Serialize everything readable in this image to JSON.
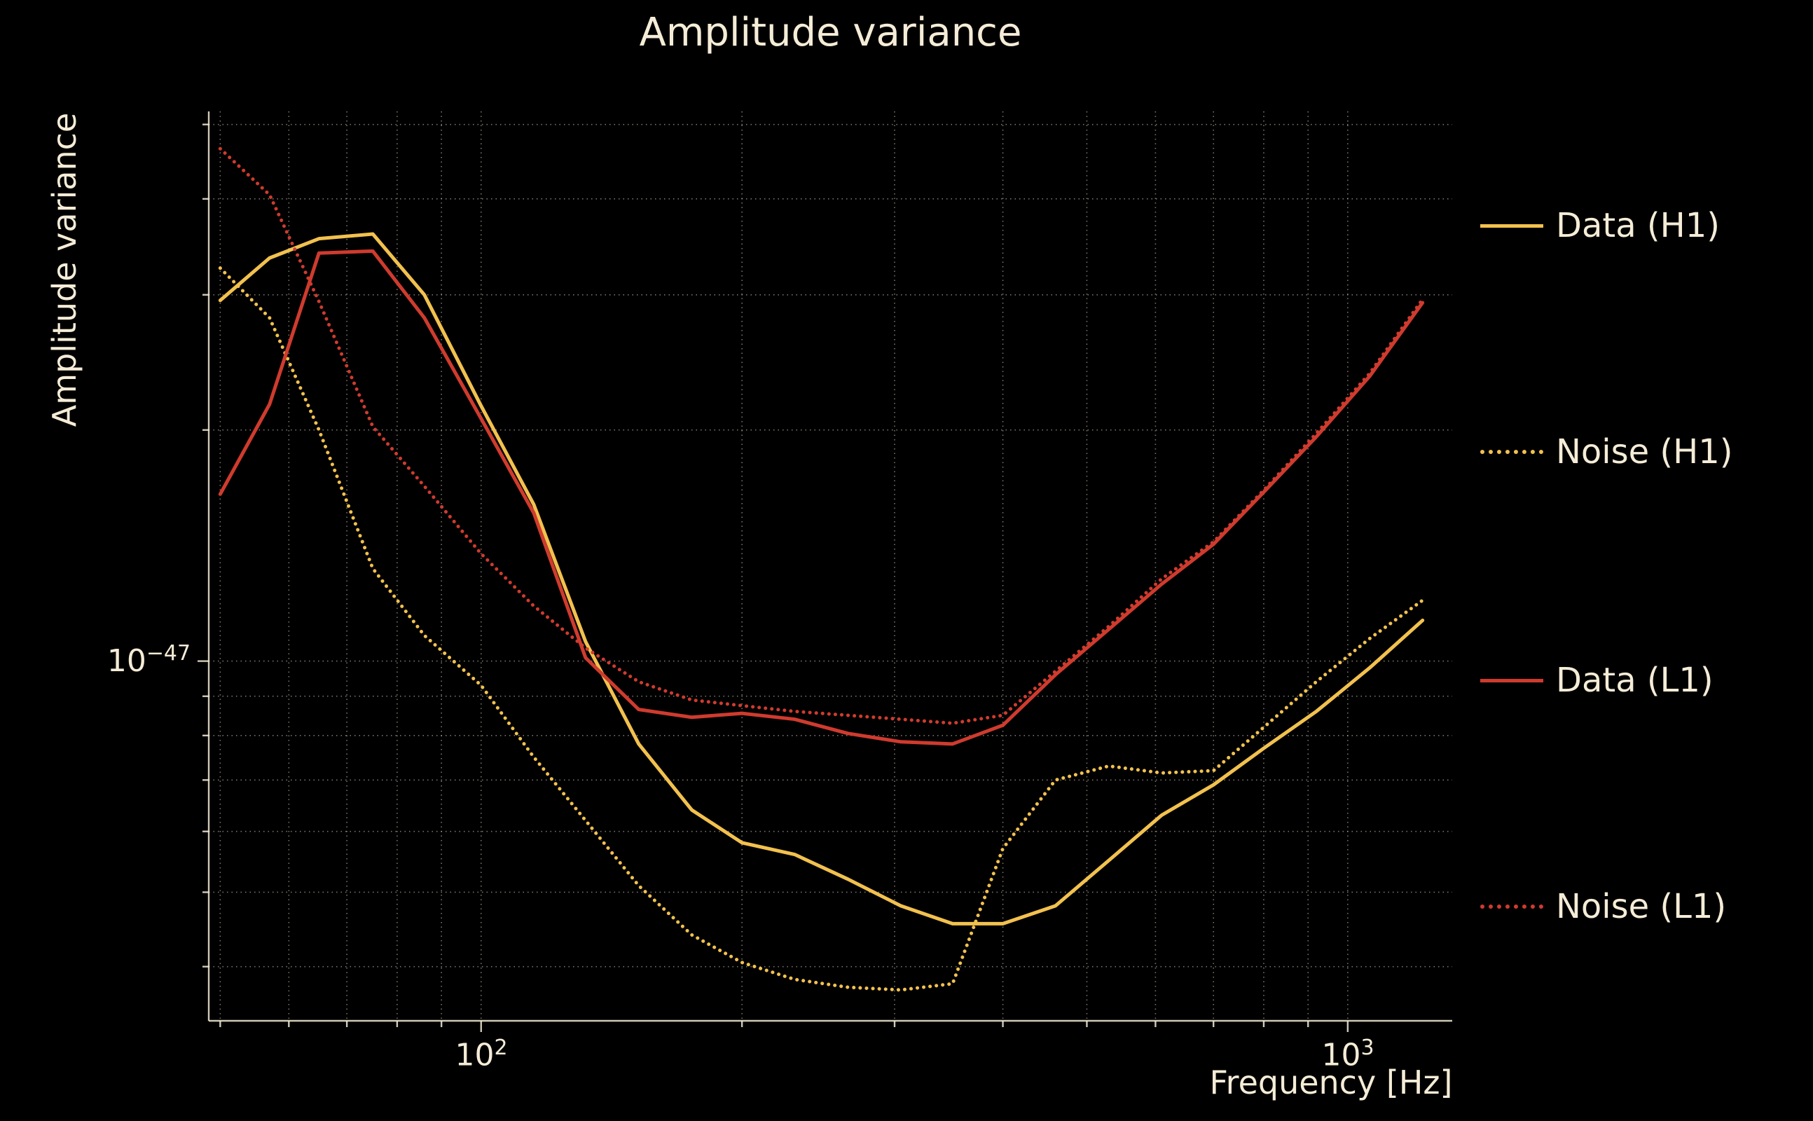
{
  "style": {
    "background": "#000000",
    "text_color": "#f5ecd7",
    "grid_color": "#f4ecd7",
    "h1_color": "#f2c14e",
    "l1_color": "#cf3b2e"
  },
  "chart_data": {
    "type": "line",
    "title": "Amplitude variance",
    "xlabel": "Frequency [Hz]",
    "ylabel": "Amplitude variance",
    "xscale": "log",
    "yscale": "log",
    "xlim": [
      48.5,
      1320
    ],
    "ylim": [
      3.4e-48,
      5.2e-47
    ],
    "grid": true,
    "legend_position": "right",
    "x_gridlines": [
      50,
      60,
      70,
      80,
      90,
      100,
      200,
      300,
      400,
      500,
      600,
      700,
      800,
      900,
      1000
    ],
    "y_gridlines": [
      5e-47,
      4e-47,
      3e-47,
      2e-47,
      1e-47,
      9e-48,
      8e-48,
      7e-48,
      6e-48,
      5e-48,
      4e-48
    ],
    "x_major_ticks": [
      100,
      1000
    ],
    "y_major_ticks": [
      1e-47
    ],
    "x_tick_labels": [
      {
        "base": "10",
        "exp": "2",
        "value": 100
      },
      {
        "base": "10",
        "exp": "3",
        "value": 1000
      }
    ],
    "y_tick_labels": [
      {
        "base": "10",
        "exp": "−47",
        "value": 1e-47
      }
    ],
    "x": [
      50,
      57,
      65,
      75,
      86,
      100,
      115,
      132,
      152,
      175,
      200,
      230,
      265,
      305,
      350,
      400,
      460,
      530,
      610,
      700,
      800,
      920,
      1060,
      1220
    ],
    "series": [
      {
        "name": "Data (H1)",
        "color": "#f2c14e",
        "style": "solid",
        "y": [
          2.95e-47,
          3.35e-47,
          3.55e-47,
          3.6e-47,
          3e-47,
          2.15e-47,
          1.6e-47,
          1.06e-47,
          7.8e-48,
          6.4e-48,
          5.8e-48,
          5.6e-48,
          5.2e-48,
          4.8e-48,
          4.55e-48,
          4.55e-48,
          4.8e-48,
          5.5e-48,
          6.3e-48,
          6.9e-48,
          7.7e-48,
          8.6e-48,
          9.8e-48,
          1.13e-47
        ]
      },
      {
        "name": "Noise (H1)",
        "color": "#f2c14e",
        "style": "dotted",
        "y": [
          3.25e-47,
          2.8e-47,
          2e-47,
          1.32e-47,
          1.08e-47,
          9.3e-48,
          7.5e-48,
          6.2e-48,
          5.1e-48,
          4.4e-48,
          4.05e-48,
          3.85e-48,
          3.76e-48,
          3.73e-48,
          3.8e-48,
          5.7e-48,
          7e-48,
          7.3e-48,
          7.15e-48,
          7.2e-48,
          8.2e-48,
          9.4e-48,
          1.07e-47,
          1.2e-47
        ]
      },
      {
        "name": "Data (L1)",
        "color": "#cf3b2e",
        "style": "solid",
        "y": [
          1.65e-47,
          2.16e-47,
          3.4e-47,
          3.42e-47,
          2.8e-47,
          2.07e-47,
          1.56e-47,
          1.01e-47,
          8.65e-48,
          8.45e-48,
          8.55e-48,
          8.4e-48,
          8.05e-48,
          7.85e-48,
          7.8e-48,
          8.25e-48,
          9.6e-48,
          1.1e-47,
          1.26e-47,
          1.42e-47,
          1.66e-47,
          1.96e-47,
          2.35e-47,
          2.93e-47
        ]
      },
      {
        "name": "Noise (L1)",
        "color": "#cf3b2e",
        "style": "dotted",
        "y": [
          4.65e-47,
          4.05e-47,
          2.94e-47,
          2.02e-47,
          1.69e-47,
          1.38e-47,
          1.18e-47,
          1.04e-47,
          9.4e-48,
          8.9e-48,
          8.75e-48,
          8.6e-48,
          8.5e-48,
          8.4e-48,
          8.3e-48,
          8.5e-48,
          9.7e-48,
          1.11e-47,
          1.28e-47,
          1.43e-47,
          1.67e-47,
          1.98e-47,
          2.37e-47,
          2.96e-47
        ]
      }
    ]
  }
}
